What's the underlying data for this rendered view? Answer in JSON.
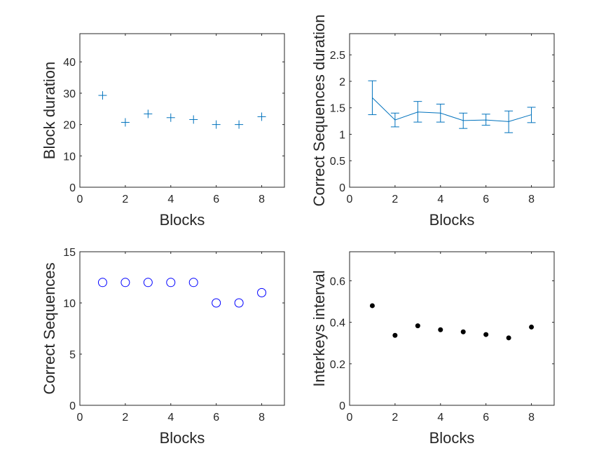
{
  "chart_data": [
    {
      "type": "scatter",
      "marker": "plus",
      "color": "#0072BD",
      "xlabel": "Blocks",
      "ylabel": "Block duration",
      "xlim": [
        0,
        9
      ],
      "ylim": [
        0,
        49
      ],
      "xticks": [
        0,
        2,
        4,
        6,
        8
      ],
      "yticks": [
        0,
        10,
        20,
        30,
        40
      ],
      "grid": false,
      "x": [
        1,
        2,
        3,
        4,
        5,
        6,
        7,
        8
      ],
      "y": [
        29.3,
        20.7,
        23.4,
        22.2,
        21.6,
        20.0,
        20.0,
        22.5
      ]
    },
    {
      "type": "line",
      "errorbars": true,
      "color": "#0072BD",
      "xlabel": "Blocks",
      "ylabel": "Correct Sequences duration",
      "xlim": [
        0,
        9
      ],
      "ylim": [
        0,
        2.9
      ],
      "xticks": [
        0,
        2,
        4,
        6,
        8
      ],
      "yticks": [
        0,
        0.5,
        1,
        1.5,
        2,
        2.5
      ],
      "ytick_labels": [
        "0",
        "0.5",
        "1",
        "1.5",
        "2",
        "2.5"
      ],
      "grid": false,
      "x": [
        1,
        2,
        3,
        4,
        5,
        6,
        7,
        8
      ],
      "y": [
        1.69,
        1.27,
        1.42,
        1.4,
        1.26,
        1.27,
        1.24,
        1.37
      ],
      "error_low": [
        1.37,
        1.14,
        1.23,
        1.23,
        1.11,
        1.17,
        1.03,
        1.22
      ],
      "error_high": [
        2.01,
        1.4,
        1.62,
        1.57,
        1.4,
        1.38,
        1.44,
        1.51
      ]
    },
    {
      "type": "scatter",
      "marker": "circle-open",
      "color": "#0000FF",
      "xlabel": "Blocks",
      "ylabel": "Correct Sequences",
      "xlim": [
        0,
        9
      ],
      "ylim": [
        0,
        15
      ],
      "xticks": [
        0,
        2,
        4,
        6,
        8
      ],
      "yticks": [
        0,
        5,
        10,
        15
      ],
      "grid": false,
      "x": [
        1,
        2,
        3,
        4,
        5,
        6,
        7,
        8
      ],
      "y": [
        12,
        12,
        12,
        12,
        12,
        10,
        10,
        11
      ]
    },
    {
      "type": "scatter",
      "marker": "dot",
      "color": "#000000",
      "xlabel": "Blocks",
      "ylabel": "Interkeys interval",
      "xlim": [
        0,
        9
      ],
      "ylim": [
        0,
        0.74
      ],
      "xticks": [
        0,
        2,
        4,
        6,
        8
      ],
      "yticks": [
        0,
        0.2,
        0.4,
        0.6
      ],
      "ytick_labels": [
        "0",
        "0.2",
        "0.4",
        "0.6"
      ],
      "grid": false,
      "x": [
        1,
        2,
        3,
        4,
        5,
        6,
        7,
        8
      ],
      "y": [
        0.48,
        0.337,
        0.383,
        0.364,
        0.354,
        0.341,
        0.325,
        0.377
      ]
    }
  ]
}
